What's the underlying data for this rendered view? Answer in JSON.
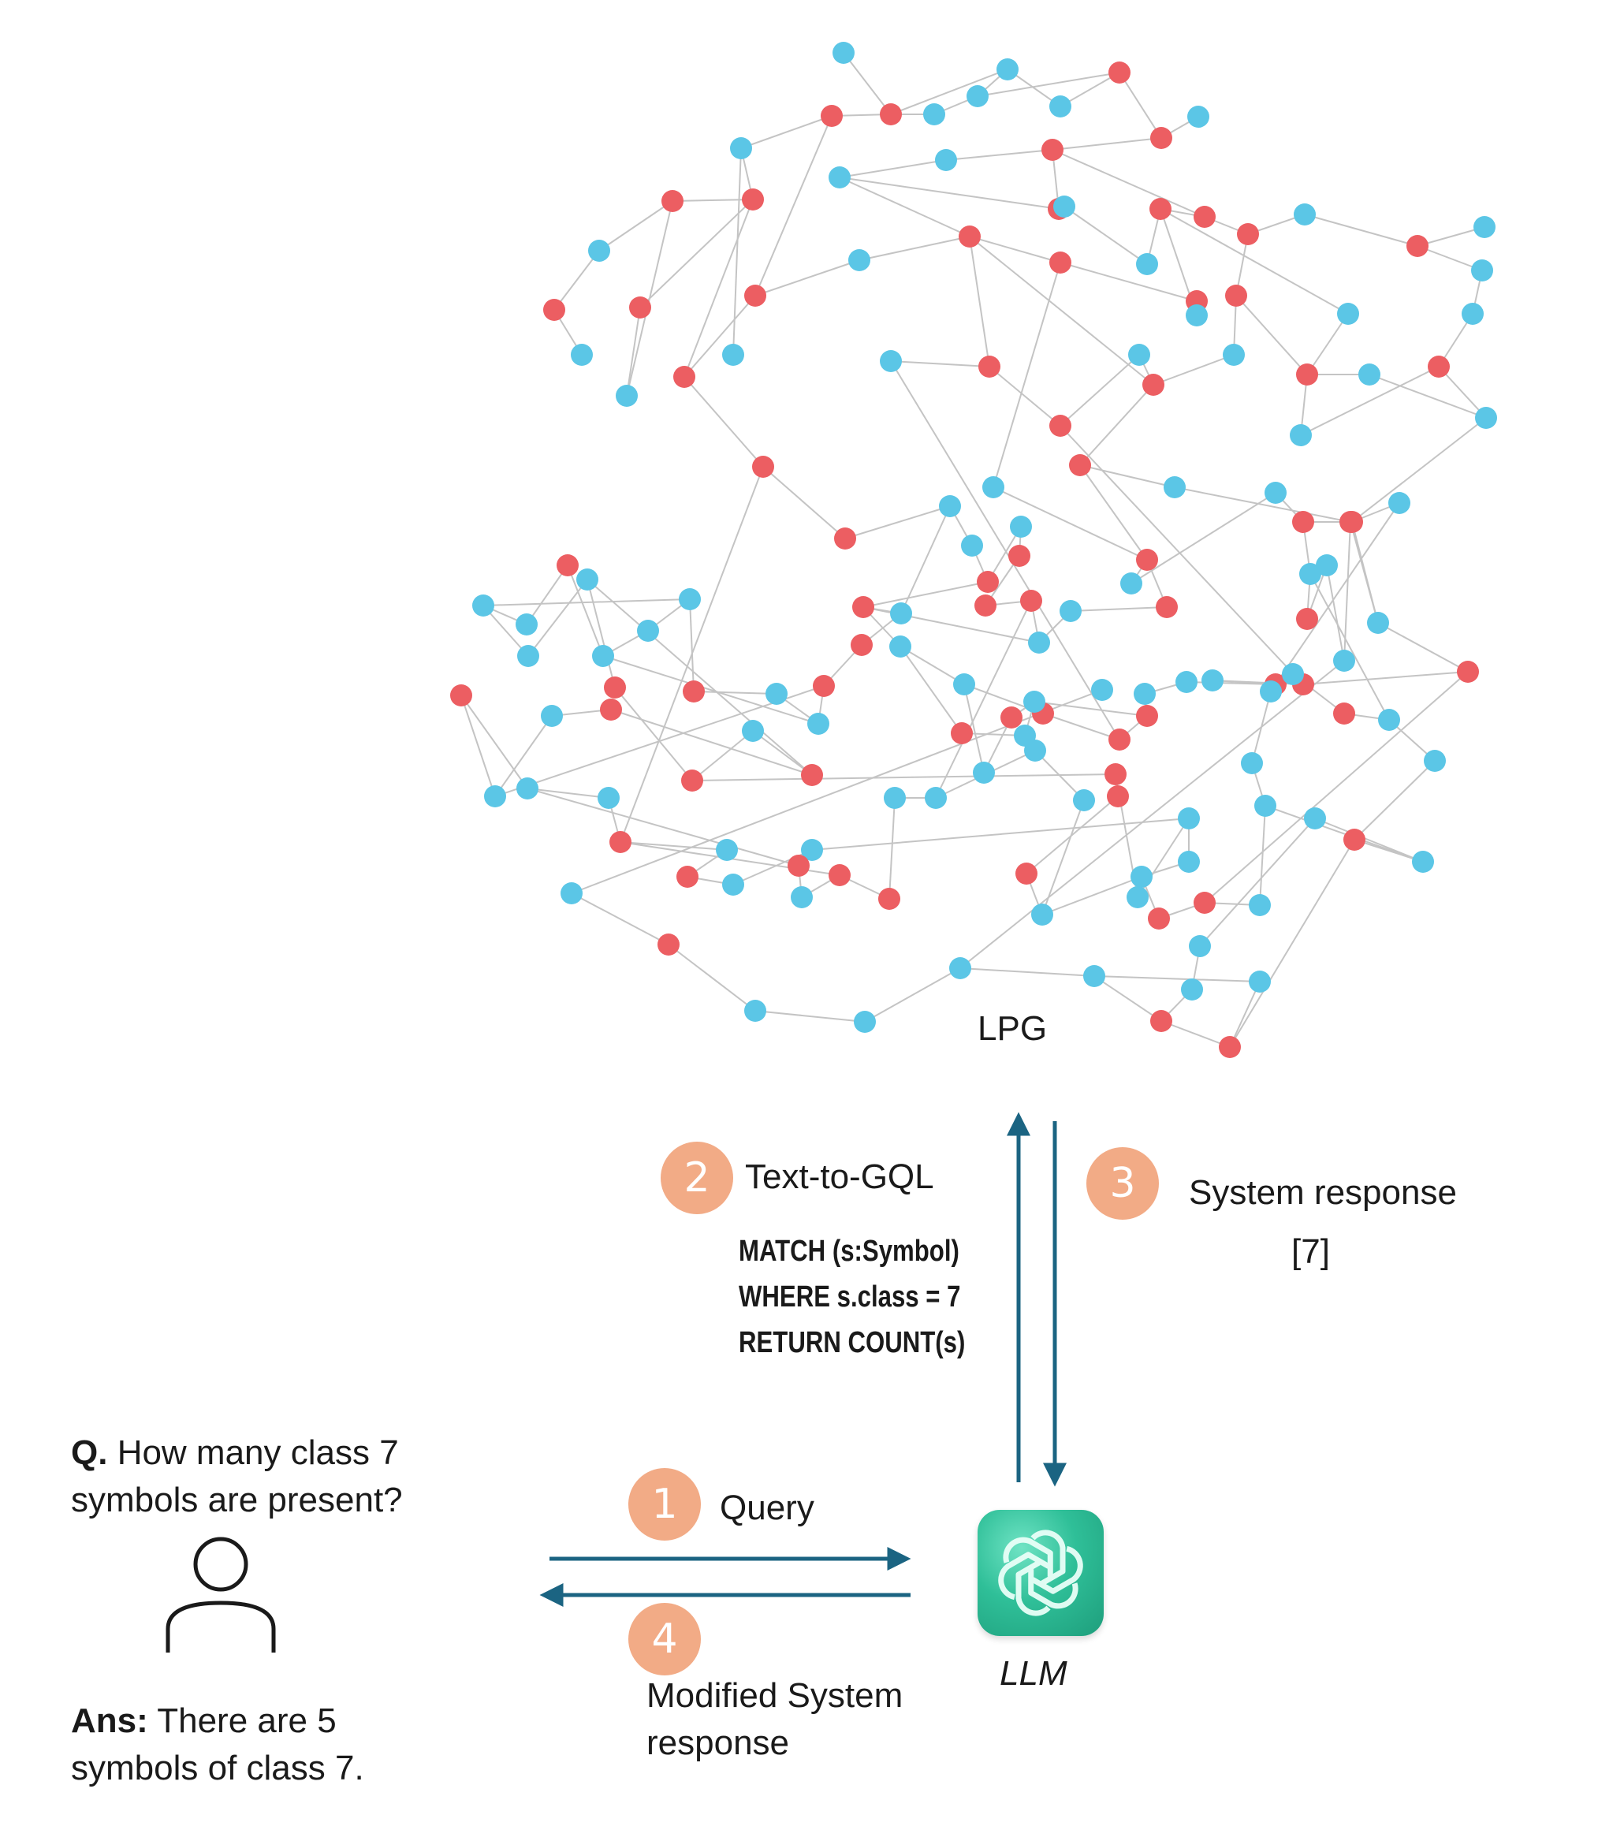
{
  "graph": {
    "label": "LPG",
    "colors": {
      "red": "#ec5e62",
      "blue": "#5bc6e6",
      "edge": "#c4c4c4"
    },
    "nodes": [
      [
        "b",
        1070,
        67
      ],
      [
        "r",
        1130,
        145
      ],
      [
        "b",
        1185,
        145
      ],
      [
        "b",
        1240,
        122
      ],
      [
        "b",
        1345,
        135
      ],
      [
        "r",
        1420,
        92
      ],
      [
        "r",
        1473,
        175
      ],
      [
        "b",
        1520,
        148
      ],
      [
        "b",
        1278,
        88
      ],
      [
        "r",
        1055,
        147
      ],
      [
        "b",
        940,
        188
      ],
      [
        "b",
        1065,
        225
      ],
      [
        "b",
        1200,
        203
      ],
      [
        "r",
        1335,
        190
      ],
      [
        "r",
        1343,
        265
      ],
      [
        "r",
        955,
        253
      ],
      [
        "r",
        853,
        255
      ],
      [
        "b",
        760,
        318
      ],
      [
        "r",
        703,
        393
      ],
      [
        "b",
        738,
        450
      ],
      [
        "b",
        795,
        502
      ],
      [
        "r",
        812,
        390
      ],
      [
        "r",
        868,
        478
      ],
      [
        "r",
        958,
        375
      ],
      [
        "b",
        930,
        450
      ],
      [
        "b",
        1090,
        330
      ],
      [
        "r",
        1230,
        300
      ],
      [
        "r",
        1345,
        333
      ],
      [
        "b",
        1350,
        262
      ],
      [
        "b",
        1455,
        335
      ],
      [
        "r",
        1472,
        265
      ],
      [
        "r",
        1528,
        275
      ],
      [
        "r",
        1583,
        297
      ],
      [
        "b",
        1655,
        272
      ],
      [
        "r",
        1798,
        312
      ],
      [
        "b",
        1883,
        288
      ],
      [
        "b",
        1880,
        343
      ],
      [
        "b",
        1868,
        398
      ],
      [
        "r",
        1825,
        465
      ],
      [
        "b",
        1885,
        530
      ],
      [
        "r",
        1568,
        375
      ],
      [
        "b",
        1565,
        450
      ],
      [
        "r",
        1463,
        488
      ],
      [
        "r",
        1518,
        382
      ],
      [
        "b",
        1518,
        400
      ],
      [
        "r",
        1658,
        475
      ],
      [
        "b",
        1710,
        398
      ],
      [
        "b",
        1737,
        475
      ],
      [
        "b",
        1650,
        552
      ],
      [
        "r",
        1255,
        465
      ],
      [
        "b",
        1130,
        458
      ],
      [
        "r",
        1345,
        540
      ],
      [
        "b",
        1445,
        450
      ],
      [
        "b",
        1490,
        618
      ],
      [
        "b",
        1260,
        618
      ],
      [
        "r",
        1370,
        590
      ],
      [
        "r",
        1715,
        662
      ],
      [
        "b",
        1775,
        638
      ],
      [
        "r",
        968,
        592
      ],
      [
        "r",
        1072,
        683
      ],
      [
        "b",
        1205,
        642
      ],
      [
        "b",
        1233,
        692
      ],
      [
        "r",
        1253,
        738
      ],
      [
        "b",
        1295,
        668
      ],
      [
        "r",
        1293,
        705
      ],
      [
        "r",
        1250,
        768
      ],
      [
        "r",
        1308,
        762
      ],
      [
        "b",
        1318,
        815
      ],
      [
        "b",
        1358,
        775
      ],
      [
        "r",
        1480,
        770
      ],
      [
        "r",
        1455,
        710
      ],
      [
        "b",
        1435,
        740
      ],
      [
        "b",
        1618,
        625
      ],
      [
        "r",
        1653,
        662
      ],
      [
        "b",
        1662,
        728
      ],
      [
        "r",
        1658,
        785
      ],
      [
        "b",
        1683,
        717
      ],
      [
        "b",
        1705,
        838
      ],
      [
        "r",
        1713,
        662
      ],
      [
        "b",
        1748,
        790
      ],
      [
        "r",
        1862,
        852
      ],
      [
        "r",
        1653,
        868
      ],
      [
        "b",
        1538,
        863
      ],
      [
        "r",
        1618,
        868
      ],
      [
        "b",
        1505,
        865
      ],
      [
        "b",
        1452,
        880
      ],
      [
        "r",
        1455,
        908
      ],
      [
        "r",
        1420,
        938
      ],
      [
        "r",
        1323,
        905
      ],
      [
        "b",
        1223,
        868
      ],
      [
        "b",
        1248,
        980
      ],
      [
        "r",
        1283,
        910
      ],
      [
        "b",
        1312,
        890
      ],
      [
        "b",
        1300,
        933
      ],
      [
        "r",
        1220,
        930
      ],
      [
        "b",
        1142,
        820
      ],
      [
        "r",
        1095,
        770
      ],
      [
        "b",
        1143,
        778
      ],
      [
        "r",
        1093,
        818
      ],
      [
        "r",
        1045,
        870
      ],
      [
        "b",
        1038,
        918
      ],
      [
        "b",
        985,
        880
      ],
      [
        "r",
        880,
        877
      ],
      [
        "b",
        875,
        760
      ],
      [
        "b",
        822,
        800
      ],
      [
        "b",
        765,
        832
      ],
      [
        "r",
        720,
        717
      ],
      [
        "b",
        668,
        792
      ],
      [
        "b",
        613,
        768
      ],
      [
        "b",
        670,
        832
      ],
      [
        "b",
        745,
        735
      ],
      [
        "r",
        780,
        872
      ],
      [
        "r",
        878,
        990
      ],
      [
        "b",
        955,
        927
      ],
      [
        "r",
        1030,
        983
      ],
      [
        "r",
        775,
        900
      ],
      [
        "b",
        700,
        908
      ],
      [
        "b",
        628,
        1010
      ],
      [
        "r",
        585,
        882
      ],
      [
        "b",
        669,
        1000
      ],
      [
        "b",
        772,
        1012
      ],
      [
        "r",
        787,
        1068
      ],
      [
        "b",
        922,
        1078
      ],
      [
        "r",
        872,
        1112
      ],
      [
        "b",
        930,
        1122
      ],
      [
        "b",
        1030,
        1078
      ],
      [
        "r",
        1013,
        1098
      ],
      [
        "b",
        1017,
        1138
      ],
      [
        "r",
        1065,
        1110
      ],
      [
        "r",
        1128,
        1140
      ],
      [
        "b",
        1135,
        1012
      ],
      [
        "b",
        1187,
        1012
      ],
      [
        "b",
        1313,
        952
      ],
      [
        "b",
        1375,
        1015
      ],
      [
        "b",
        1322,
        1160
      ],
      [
        "r",
        1302,
        1108
      ],
      [
        "r",
        1418,
        1010
      ],
      [
        "r",
        1415,
        982
      ],
      [
        "b",
        1443,
        1138
      ],
      [
        "b",
        1508,
        1038
      ],
      [
        "b",
        1508,
        1093
      ],
      [
        "b",
        1448,
        1112
      ],
      [
        "r",
        1470,
        1165
      ],
      [
        "r",
        1528,
        1145
      ],
      [
        "b",
        1598,
        1148
      ],
      [
        "b",
        1605,
        1022
      ],
      [
        "b",
        1588,
        968
      ],
      [
        "b",
        1612,
        877
      ],
      [
        "b",
        1640,
        855
      ],
      [
        "r",
        1705,
        905
      ],
      [
        "b",
        1762,
        913
      ],
      [
        "b",
        1820,
        965
      ],
      [
        "r",
        1718,
        1065
      ],
      [
        "b",
        1805,
        1093
      ],
      [
        "b",
        1668,
        1038
      ],
      [
        "b",
        1522,
        1200
      ],
      [
        "b",
        1512,
        1255
      ],
      [
        "r",
        1473,
        1295
      ],
      [
        "r",
        1560,
        1328
      ],
      [
        "b",
        1598,
        1245
      ],
      [
        "b",
        1388,
        1238
      ],
      [
        "b",
        1218,
        1228
      ],
      [
        "b",
        1097,
        1296
      ],
      [
        "b",
        958,
        1282
      ],
      [
        "r",
        848,
        1198
      ],
      [
        "b",
        725,
        1133
      ],
      [
        "b",
        1398,
        875
      ]
    ],
    "edges": [
      [
        0,
        1
      ],
      [
        1,
        2
      ],
      [
        2,
        3
      ],
      [
        1,
        9
      ],
      [
        9,
        10
      ],
      [
        10,
        15
      ],
      [
        15,
        16
      ],
      [
        16,
        17
      ],
      [
        17,
        18
      ],
      [
        18,
        19
      ],
      [
        16,
        20
      ],
      [
        20,
        21
      ],
      [
        21,
        15
      ],
      [
        15,
        22
      ],
      [
        22,
        23
      ],
      [
        23,
        9
      ],
      [
        10,
        24
      ],
      [
        3,
        5
      ],
      [
        4,
        5
      ],
      [
        5,
        6
      ],
      [
        6,
        7
      ],
      [
        6,
        13
      ],
      [
        13,
        12
      ],
      [
        12,
        11
      ],
      [
        11,
        14
      ],
      [
        14,
        13
      ],
      [
        8,
        1
      ],
      [
        8,
        4
      ],
      [
        3,
        8
      ],
      [
        11,
        26
      ],
      [
        26,
        25
      ],
      [
        25,
        23
      ],
      [
        26,
        27
      ],
      [
        14,
        28
      ],
      [
        28,
        29
      ],
      [
        29,
        30
      ],
      [
        30,
        31
      ],
      [
        13,
        31
      ],
      [
        31,
        32
      ],
      [
        32,
        33
      ],
      [
        32,
        40
      ],
      [
        40,
        41
      ],
      [
        41,
        42
      ],
      [
        42,
        26
      ],
      [
        27,
        43
      ],
      [
        43,
        44
      ],
      [
        44,
        30
      ],
      [
        30,
        46
      ],
      [
        46,
        45
      ],
      [
        45,
        47
      ],
      [
        45,
        48
      ],
      [
        48,
        38
      ],
      [
        38,
        37
      ],
      [
        38,
        39
      ],
      [
        37,
        36
      ],
      [
        36,
        34
      ],
      [
        34,
        35
      ],
      [
        34,
        33
      ],
      [
        40,
        45
      ],
      [
        26,
        49
      ],
      [
        49,
        50
      ],
      [
        49,
        51
      ],
      [
        51,
        52
      ],
      [
        52,
        42
      ],
      [
        42,
        55
      ],
      [
        55,
        53
      ],
      [
        53,
        78
      ],
      [
        27,
        54
      ],
      [
        51,
        81
      ],
      [
        55,
        70
      ],
      [
        22,
        58
      ],
      [
        58,
        59
      ],
      [
        59,
        60
      ],
      [
        60,
        61
      ],
      [
        61,
        62
      ],
      [
        62,
        63
      ],
      [
        63,
        64
      ],
      [
        64,
        65
      ],
      [
        65,
        66
      ],
      [
        66,
        67
      ],
      [
        67,
        68
      ],
      [
        68,
        69
      ],
      [
        69,
        70
      ],
      [
        70,
        71
      ],
      [
        71,
        72
      ],
      [
        72,
        73
      ],
      [
        73,
        74
      ],
      [
        74,
        75
      ],
      [
        75,
        76
      ],
      [
        76,
        77
      ],
      [
        77,
        78
      ],
      [
        78,
        79
      ],
      [
        79,
        80
      ],
      [
        80,
        81
      ],
      [
        81,
        82
      ],
      [
        82,
        83
      ],
      [
        83,
        84
      ],
      [
        84,
        85
      ],
      [
        85,
        86
      ],
      [
        86,
        87
      ],
      [
        87,
        88
      ],
      [
        88,
        89
      ],
      [
        89,
        90
      ],
      [
        90,
        91
      ],
      [
        91,
        92
      ],
      [
        92,
        93
      ],
      [
        93,
        94
      ],
      [
        94,
        95
      ],
      [
        95,
        96
      ],
      [
        96,
        97
      ],
      [
        97,
        98
      ],
      [
        98,
        99
      ],
      [
        99,
        100
      ],
      [
        100,
        101
      ],
      [
        101,
        102
      ],
      [
        102,
        103
      ],
      [
        103,
        104
      ],
      [
        104,
        105
      ],
      [
        105,
        106
      ],
      [
        106,
        107
      ],
      [
        107,
        108
      ],
      [
        108,
        109
      ],
      [
        109,
        110
      ],
      [
        110,
        111
      ],
      [
        111,
        112
      ],
      [
        112,
        113
      ],
      [
        113,
        114
      ],
      [
        114,
        115
      ],
      [
        115,
        116
      ],
      [
        116,
        117
      ],
      [
        117,
        118
      ],
      [
        118,
        119
      ],
      [
        119,
        120
      ],
      [
        120,
        121
      ],
      [
        121,
        122
      ],
      [
        122,
        123
      ],
      [
        123,
        124
      ],
      [
        124,
        125
      ],
      [
        125,
        126
      ],
      [
        126,
        127
      ],
      [
        127,
        128
      ],
      [
        128,
        129
      ],
      [
        129,
        130
      ],
      [
        130,
        131
      ],
      [
        131,
        132
      ],
      [
        132,
        133
      ],
      [
        133,
        134
      ],
      [
        134,
        135
      ],
      [
        135,
        136
      ],
      [
        136,
        137
      ],
      [
        137,
        138
      ],
      [
        138,
        139
      ],
      [
        139,
        140
      ],
      [
        140,
        141
      ],
      [
        141,
        142
      ],
      [
        142,
        143
      ],
      [
        143,
        144
      ],
      [
        144,
        145
      ],
      [
        145,
        146
      ],
      [
        146,
        147
      ],
      [
        147,
        148
      ],
      [
        148,
        149
      ],
      [
        149,
        150
      ],
      [
        150,
        151
      ],
      [
        151,
        152
      ],
      [
        152,
        153
      ],
      [
        153,
        154
      ],
      [
        154,
        155
      ],
      [
        155,
        156
      ],
      [
        156,
        157
      ],
      [
        157,
        158
      ],
      [
        158,
        159
      ],
      [
        159,
        160
      ],
      [
        160,
        161
      ],
      [
        161,
        162
      ],
      [
        162,
        163
      ],
      [
        163,
        164
      ],
      [
        164,
        165
      ],
      [
        165,
        166
      ],
      [
        166,
        167
      ],
      [
        167,
        168
      ],
      [
        168,
        169
      ],
      [
        169,
        170
      ],
      [
        170,
        171
      ],
      [
        171,
        172
      ],
      [
        172,
        173
      ],
      [
        173,
        174
      ],
      [
        99,
        117
      ],
      [
        112,
        137
      ],
      [
        86,
        92
      ],
      [
        89,
        95
      ],
      [
        62,
        96
      ],
      [
        66,
        131
      ],
      [
        74,
        150
      ],
      [
        80,
        143
      ],
      [
        77,
        161
      ],
      [
        56,
        57
      ],
      [
        56,
        73
      ],
      [
        56,
        79
      ],
      [
        57,
        83
      ],
      [
        47,
        39
      ],
      [
        39,
        56
      ],
      [
        50,
        87
      ],
      [
        91,
        175
      ],
      [
        175,
        93
      ],
      [
        103,
        108
      ],
      [
        110,
        114
      ],
      [
        119,
        126
      ],
      [
        121,
        128
      ],
      [
        125,
        139
      ],
      [
        134,
        141
      ],
      [
        145,
        153
      ],
      [
        152,
        158
      ],
      [
        157,
        160
      ],
      [
        164,
        168
      ],
      [
        100,
        105
      ],
      [
        67,
        96
      ],
      [
        54,
        70
      ],
      [
        60,
        97
      ],
      [
        58,
        121
      ]
    ]
  },
  "steps": {
    "s1": {
      "num": "1",
      "label": "Query"
    },
    "s2": {
      "num": "2",
      "label": "Text-to-GQL",
      "code": [
        "MATCH (s:Symbol)",
        "WHERE s.class = 7",
        "RETURN COUNT(s)"
      ]
    },
    "s3": {
      "num": "3",
      "label": "System response",
      "value": "[7]"
    },
    "s4": {
      "num": "4",
      "label_line1": "Modified System",
      "label_line2": "response"
    }
  },
  "user": {
    "q_prefix": "Q.",
    "q_line1": "How many class 7",
    "q_line2": "symbols are present?",
    "ans_prefix": "Ans:",
    "ans_line1": "There are 5",
    "ans_line2": "symbols of class 7."
  },
  "llm": {
    "label": "LLM",
    "icon": "openai-logo-icon"
  },
  "arrow_color": "#1b6482"
}
